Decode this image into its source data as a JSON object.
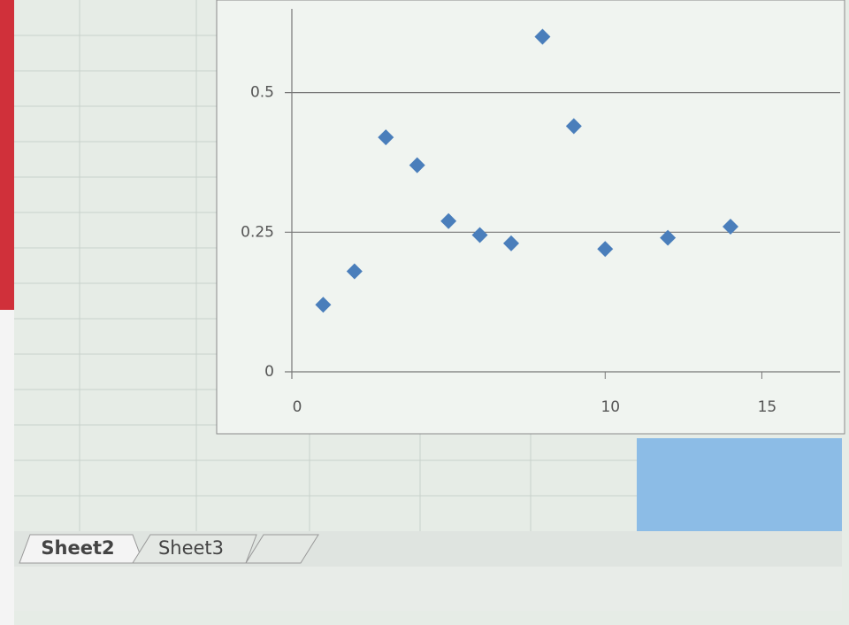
{
  "chart_data": {
    "type": "scatter",
    "x": [
      1,
      2,
      3,
      4,
      5,
      6,
      7,
      8,
      9,
      10,
      12,
      14
    ],
    "values": [
      0.12,
      0.18,
      0.42,
      0.37,
      0.27,
      0.245,
      0.23,
      0.6,
      0.44,
      0.22,
      0.24,
      0.26
    ],
    "color": "#4a7ebb",
    "xlim": [
      0,
      17.5
    ],
    "ylim": [
      0,
      0.65
    ],
    "xticks": [
      0,
      10,
      15
    ],
    "yticks": [
      0,
      0.25,
      0.5
    ],
    "grid": true
  },
  "sheet_tabs": [
    "Sheet2",
    "Sheet3"
  ]
}
